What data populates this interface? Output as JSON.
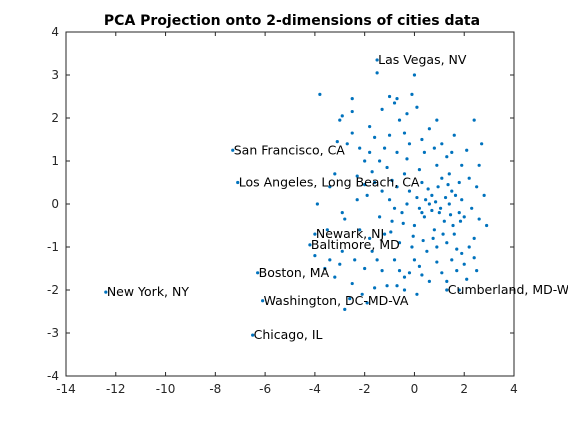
{
  "chart_data": {
    "type": "scatter",
    "title": "PCA Projection onto 2-dimensions of cities data",
    "xlabel": "",
    "ylabel": "",
    "xlim": [
      -14,
      4
    ],
    "ylim": [
      -4,
      4
    ],
    "xticks": [
      -14,
      -12,
      -10,
      -8,
      -6,
      -4,
      -2,
      0,
      2,
      4
    ],
    "yticks": [
      -4,
      -3,
      -2,
      -1,
      0,
      1,
      2,
      3,
      4
    ],
    "grid": false,
    "marker_color": "#0072bd",
    "annotations": [
      {
        "label": "Las Vegas, NV",
        "x": -1.5,
        "y": 3.35
      },
      {
        "label": "San Francisco, CA",
        "x": -7.3,
        "y": 1.25
      },
      {
        "label": "Los Angeles, Long Beach, CA",
        "x": -7.1,
        "y": 0.5
      },
      {
        "label": "Newark, NJ",
        "x": -4.0,
        "y": -0.7
      },
      {
        "label": "Baltimore, MD",
        "x": -4.2,
        "y": -0.95
      },
      {
        "label": "Boston, MA",
        "x": -6.3,
        "y": -1.6
      },
      {
        "label": "New York, NY",
        "x": -12.4,
        "y": -2.05
      },
      {
        "label": "Washington, DC-MD-VA",
        "x": -6.1,
        "y": -2.25
      },
      {
        "label": "Chicago, IL",
        "x": -6.5,
        "y": -3.05
      },
      {
        "label": "Cumberland, MD-WV",
        "x": 1.3,
        "y": -2.0
      }
    ],
    "points": [
      [
        -12.4,
        -2.05
      ],
      [
        -7.3,
        1.25
      ],
      [
        -7.1,
        0.5
      ],
      [
        -6.5,
        -3.05
      ],
      [
        -6.3,
        -1.6
      ],
      [
        -6.1,
        -2.25
      ],
      [
        -4.0,
        -0.7
      ],
      [
        -4.2,
        -0.95
      ],
      [
        -1.5,
        3.35
      ],
      [
        1.3,
        -2.0
      ],
      [
        -2.8,
        -2.45
      ],
      [
        -4.0,
        -1.2
      ],
      [
        -3.6,
        -1.5
      ],
      [
        -2.1,
        -2.1
      ],
      [
        -1.6,
        -1.95
      ],
      [
        2.5,
        -1.55
      ],
      [
        -3.8,
        2.55
      ],
      [
        -2.5,
        2.45
      ],
      [
        -2.5,
        2.15
      ],
      [
        -1.3,
        2.2
      ],
      [
        -0.7,
        2.45
      ],
      [
        -0.1,
        2.55
      ],
      [
        -1.5,
        3.05
      ],
      [
        0.0,
        3.0
      ],
      [
        -0.8,
        2.35
      ],
      [
        -2.7,
        1.4
      ],
      [
        -2.2,
        1.3
      ],
      [
        -1.6,
        1.55
      ],
      [
        -3.0,
        1.95
      ],
      [
        -2.9,
        2.05
      ],
      [
        -0.3,
        2.1
      ],
      [
        -0.6,
        1.95
      ],
      [
        2.7,
        1.4
      ],
      [
        2.4,
        1.95
      ],
      [
        -3.2,
        0.7
      ],
      [
        -2.3,
        0.65
      ],
      [
        -1.9,
        0.2
      ],
      [
        -2.9,
        -0.2
      ],
      [
        -2.8,
        -0.35
      ],
      [
        -2.2,
        -0.6
      ],
      [
        -1.8,
        -0.8
      ],
      [
        -1.0,
        0.1
      ],
      [
        -1.1,
        0.85
      ],
      [
        -0.7,
        1.2
      ],
      [
        -0.3,
        1.05
      ],
      [
        0.3,
        1.5
      ],
      [
        0.6,
        1.75
      ],
      [
        1.1,
        1.4
      ],
      [
        1.5,
        1.2
      ],
      [
        1.9,
        0.9
      ],
      [
        2.2,
        0.6
      ],
      [
        2.5,
        0.4
      ],
      [
        2.8,
        0.2
      ],
      [
        2.9,
        -0.5
      ],
      [
        2.6,
        -0.35
      ],
      [
        -3.0,
        -1.4
      ],
      [
        -2.4,
        -1.3
      ],
      [
        -1.7,
        -1.1
      ],
      [
        -1.3,
        -1.55
      ],
      [
        -0.8,
        -1.3
      ],
      [
        -0.4,
        -1.7
      ],
      [
        0.2,
        -1.45
      ],
      [
        0.6,
        -1.8
      ],
      [
        1.1,
        -1.6
      ],
      [
        1.5,
        -1.3
      ],
      [
        1.9,
        -1.15
      ],
      [
        2.2,
        -1.0
      ],
      [
        2.4,
        -0.8
      ],
      [
        -0.4,
        -2.0
      ],
      [
        0.1,
        -2.1
      ],
      [
        1.8,
        -2.0
      ],
      [
        2.1,
        -1.75
      ],
      [
        -0.9,
        -0.4
      ],
      [
        -0.5,
        -0.2
      ],
      [
        0.0,
        -0.5
      ],
      [
        0.4,
        -0.3
      ],
      [
        0.8,
        -0.6
      ],
      [
        1.2,
        -0.4
      ],
      [
        1.6,
        -0.7
      ],
      [
        2.0,
        -0.3
      ],
      [
        -0.7,
        0.4
      ],
      [
        -0.2,
        0.3
      ],
      [
        0.3,
        0.5
      ],
      [
        0.7,
        0.2
      ],
      [
        1.1,
        0.6
      ],
      [
        1.5,
        0.3
      ],
      [
        1.9,
        0.1
      ],
      [
        -1.4,
        -0.3
      ],
      [
        -1.2,
        -0.7
      ],
      [
        -0.6,
        -0.9
      ],
      [
        -0.1,
        -1.0
      ],
      [
        0.5,
        -1.1
      ],
      [
        0.9,
        -1.0
      ],
      [
        1.3,
        -0.9
      ],
      [
        1.7,
        -1.05
      ],
      [
        -1.6,
        0.5
      ],
      [
        -1.3,
        0.3
      ],
      [
        -0.4,
        0.7
      ],
      [
        0.2,
        0.8
      ],
      [
        0.9,
        0.9
      ],
      [
        1.4,
        0.7
      ],
      [
        1.8,
        0.5
      ],
      [
        -0.2,
        1.4
      ],
      [
        0.4,
        1.2
      ],
      [
        0.8,
        1.3
      ],
      [
        1.3,
        1.1
      ],
      [
        -1.0,
        1.6
      ],
      [
        -0.4,
        1.65
      ],
      [
        -2.0,
        1.0
      ],
      [
        -1.8,
        1.2
      ],
      [
        -0.8,
        -0.1
      ],
      [
        -0.3,
        0.0
      ],
      [
        0.2,
        -0.1
      ],
      [
        0.6,
        0.0
      ],
      [
        1.0,
        -0.2
      ],
      [
        1.4,
        0.0
      ],
      [
        1.8,
        -0.2
      ],
      [
        2.3,
        -0.1
      ],
      [
        -1.1,
        -1.9
      ],
      [
        -0.6,
        -1.55
      ],
      [
        0.0,
        -1.3
      ],
      [
        0.9,
        -1.35
      ],
      [
        1.3,
        -1.8
      ],
      [
        -2.5,
        -1.85
      ],
      [
        -3.2,
        -1.7
      ],
      [
        -2.9,
        -1.1
      ],
      [
        -3.5,
        -0.6
      ],
      [
        0.1,
        2.25
      ],
      [
        -1.0,
        2.5
      ],
      [
        -1.8,
        1.8
      ],
      [
        -3.1,
        1.45
      ],
      [
        -2.5,
        1.65
      ],
      [
        0.9,
        1.95
      ],
      [
        1.6,
        1.6
      ],
      [
        2.1,
        1.25
      ],
      [
        -0.05,
        -0.75
      ],
      [
        0.35,
        -0.85
      ],
      [
        0.75,
        -0.8
      ],
      [
        1.15,
        -0.7
      ],
      [
        1.55,
        -0.5
      ],
      [
        0.55,
        0.35
      ],
      [
        0.95,
        0.4
      ],
      [
        1.35,
        0.45
      ],
      [
        -0.45,
        -0.45
      ],
      [
        -0.95,
        -0.65
      ],
      [
        0.1,
        0.15
      ],
      [
        0.45,
        0.1
      ],
      [
        0.85,
        0.05
      ],
      [
        1.25,
        0.15
      ],
      [
        1.65,
        0.2
      ],
      [
        0.3,
        -0.2
      ],
      [
        0.7,
        -0.15
      ],
      [
        1.05,
        -0.1
      ],
      [
        1.45,
        -0.25
      ],
      [
        1.85,
        -0.4
      ],
      [
        -1.5,
        -1.3
      ],
      [
        -2.0,
        -1.5
      ],
      [
        -2.3,
        0.1
      ],
      [
        -2.0,
        0.45
      ],
      [
        -1.7,
        0.75
      ],
      [
        -1.4,
        1.0
      ],
      [
        -1.2,
        1.3
      ],
      [
        -0.9,
        0.55
      ],
      [
        2.6,
        0.9
      ],
      [
        2.4,
        -1.25
      ],
      [
        2.0,
        -1.4
      ],
      [
        1.7,
        -1.55
      ],
      [
        0.3,
        -1.65
      ],
      [
        -0.2,
        -1.6
      ],
      [
        -0.7,
        -1.9
      ],
      [
        -1.9,
        -2.3
      ],
      [
        -2.6,
        -2.2
      ],
      [
        -3.4,
        -1.3
      ],
      [
        -3.9,
        0.0
      ],
      [
        -3.4,
        0.4
      ]
    ]
  }
}
